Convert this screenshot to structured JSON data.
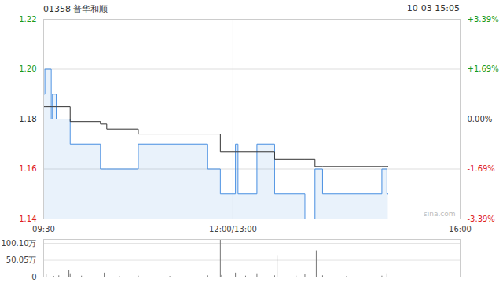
{
  "chart_data": [
    {
      "type": "line",
      "title": "01358 普华和顺",
      "subtitle": "10-03 15:05",
      "watermark": "sina.com",
      "x": [
        0,
        1,
        6,
        7,
        10,
        21,
        45,
        50,
        75,
        130,
        140,
        152,
        154,
        169,
        183,
        207,
        215,
        221,
        268,
        272,
        273
      ],
      "series": [
        {
          "type": "area",
          "color": "#4a90e2",
          "values": [
            1.19,
            1.2,
            1.18,
            1.19,
            1.18,
            1.17,
            1.16,
            1.16,
            1.17,
            1.16,
            1.15,
            1.17,
            1.15,
            1.17,
            1.15,
            1.14,
            1.16,
            1.15,
            1.16,
            1.15,
            1.15
          ]
        },
        {
          "type": "line",
          "color": "#333333",
          "values": [
            1.185,
            1.185,
            1.185,
            1.185,
            1.185,
            1.179,
            1.178,
            1.176,
            1.174,
            1.174,
            1.167,
            1.167,
            1.167,
            1.167,
            1.164,
            1.164,
            1.161,
            1.161,
            1.161,
            1.161,
            1.161
          ]
        }
      ],
      "xlim": [
        0,
        330
      ],
      "xticks": [
        {
          "value": 0,
          "label": "09:30"
        },
        {
          "value": 150,
          "label": "12:00/13:00"
        },
        {
          "value": 330,
          "label": "16:00"
        }
      ],
      "ylim": [
        1.14,
        1.22
      ],
      "yticks": [
        1.14,
        1.16,
        1.18,
        {
          "value": 1.2,
          "label": "1.20"
        },
        1.22
      ],
      "y2lim": [
        -3.39,
        3.39
      ],
      "y2ticks": [
        {
          "value": -3.39,
          "label": "-3.39%"
        },
        {
          "value": -1.69,
          "label": "-1.69%"
        },
        {
          "value": 0,
          "label": "0.00%"
        },
        {
          "value": 1.69,
          "label": "+1.69%"
        },
        {
          "value": 3.39,
          "label": "+3.39%"
        }
      ],
      "grid": true
    },
    {
      "type": "bar",
      "x": [
        2,
        5,
        8,
        12,
        20,
        21,
        30,
        48,
        60,
        75,
        100,
        130,
        140,
        141,
        152,
        160,
        169,
        183,
        185,
        200,
        207,
        216,
        221,
        240,
        268,
        272
      ],
      "values": [
        8,
        3,
        2,
        4,
        20,
        10,
        3,
        12,
        2,
        3,
        2,
        4,
        110,
        5,
        12,
        3,
        10,
        4,
        62,
        3,
        8,
        78,
        4,
        2,
        3,
        10
      ],
      "color": "#777777",
      "xlim": [
        0,
        330
      ],
      "ylim": [
        0,
        112
      ],
      "yticks": [
        0,
        {
          "value": 50.05,
          "label": "50.05万"
        },
        {
          "value": 100.1,
          "label": "100.10万"
        }
      ],
      "grid": true,
      "tick_labels": "y"
    }
  ]
}
